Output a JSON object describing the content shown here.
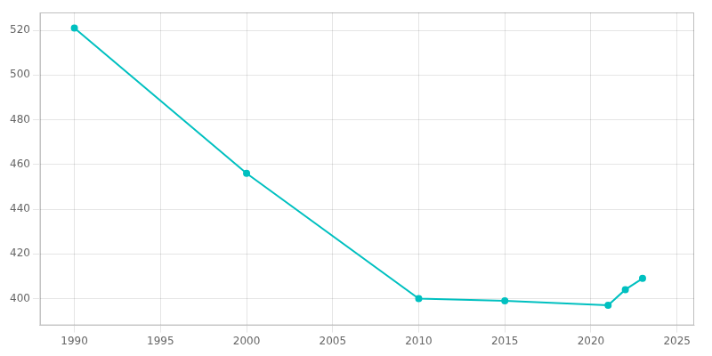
{
  "chart_data": {
    "type": "line",
    "x": [
      1990,
      2000,
      2010,
      2015,
      2021,
      2022,
      2023
    ],
    "values": [
      521,
      456,
      400,
      399,
      397,
      404,
      409
    ],
    "color": "#00C0C0",
    "marker": "circle",
    "xlim": [
      1988,
      2026
    ],
    "ylim": [
      388,
      528
    ],
    "xticks": [
      1990,
      1995,
      2000,
      2005,
      2010,
      2015,
      2020,
      2025
    ],
    "yticks": [
      400,
      420,
      440,
      460,
      480,
      500,
      520
    ],
    "grid": true
  }
}
